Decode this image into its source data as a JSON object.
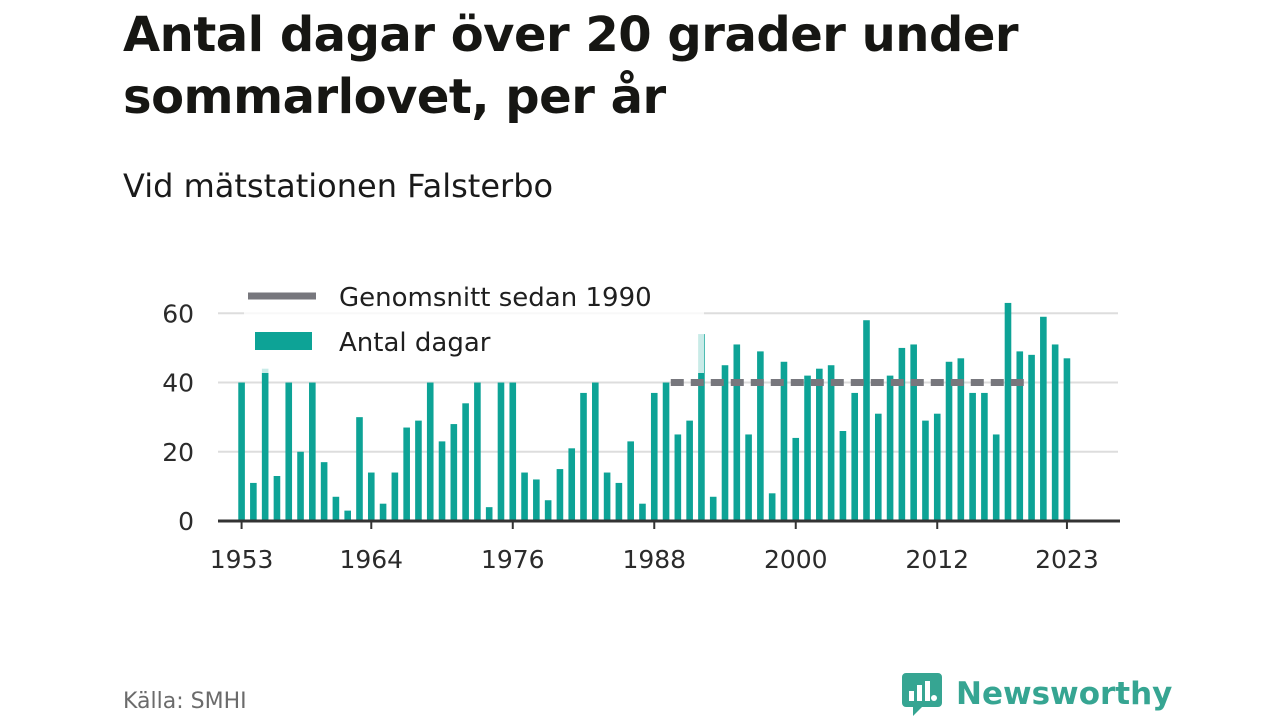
{
  "title": "Antal dagar över 20 grader under sommarlovet, per år",
  "subtitle": "Vid mätstationen Falsterbo",
  "source": "Källa: SMHI",
  "brand": {
    "name": "Newsworthy",
    "icon": "newsworthy-logo-icon",
    "color": "#36a592"
  },
  "colors": {
    "bars": "#0da396",
    "bars_faded": "#cfeeeb",
    "average": "#77777d",
    "grid": "#dddddd",
    "axis": "#333333"
  },
  "chart_data": {
    "type": "bar",
    "x_tick_labels": [
      "1953",
      "1964",
      "1976",
      "1988",
      "2000",
      "2012",
      "2023"
    ],
    "y_ticks": [
      0,
      20,
      40,
      60
    ],
    "ylim": [
      0,
      65
    ],
    "xlim": [
      1951,
      2027.5
    ],
    "grid": true,
    "legend_position": "top-left",
    "series": [
      {
        "name": "Antal dagar",
        "x": [
          1953,
          1954,
          1955,
          1956,
          1957,
          1958,
          1959,
          1960,
          1961,
          1962,
          1963,
          1964,
          1965,
          1966,
          1967,
          1968,
          1969,
          1970,
          1971,
          1972,
          1973,
          1974,
          1975,
          1976,
          1977,
          1978,
          1979,
          1980,
          1981,
          1982,
          1983,
          1984,
          1985,
          1986,
          1987,
          1988,
          1989,
          1990,
          1991,
          1992,
          1993,
          1994,
          1995,
          1996,
          1997,
          1998,
          1999,
          2000,
          2001,
          2002,
          2003,
          2004,
          2005,
          2006,
          2007,
          2008,
          2009,
          2010,
          2011,
          2012,
          2013,
          2014,
          2015,
          2016,
          2017,
          2018,
          2019,
          2020,
          2021,
          2022,
          2023
        ],
        "values": [
          40,
          11,
          44,
          13,
          40,
          20,
          40,
          17,
          7,
          3,
          30,
          14,
          5,
          14,
          27,
          29,
          40,
          23,
          28,
          34,
          40,
          4,
          40,
          40,
          14,
          12,
          6,
          15,
          21,
          37,
          40,
          14,
          11,
          23,
          5,
          37,
          40,
          25,
          29,
          54,
          7,
          45,
          51,
          25,
          49,
          8,
          46,
          24,
          42,
          44,
          45,
          26,
          37,
          58,
          31,
          42,
          50,
          51,
          29,
          31,
          46,
          47,
          37,
          37,
          25,
          63,
          49,
          48,
          59,
          51,
          47
        ]
      },
      {
        "name": "Genomsnitt sedan 1990",
        "type": "line",
        "x_range": [
          1990,
          2019
        ],
        "value": 40
      }
    ]
  }
}
